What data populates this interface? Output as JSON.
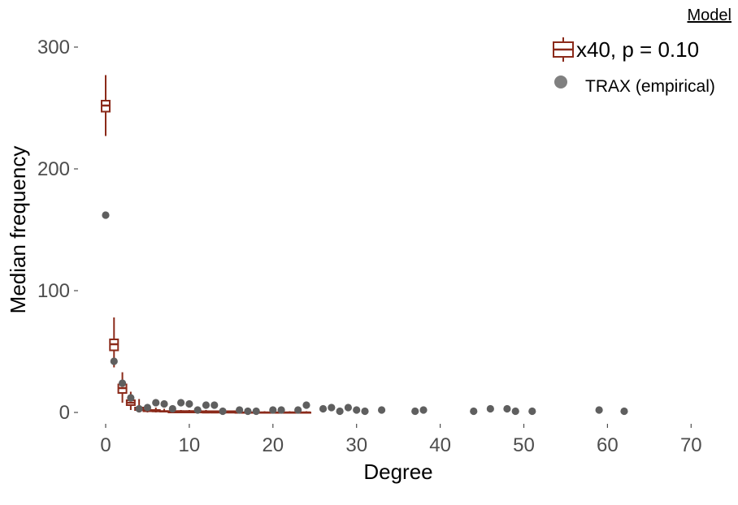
{
  "chart_data": {
    "type": "scatter",
    "xlabel": "Degree",
    "ylabel": "Median frequency",
    "xlim": [
      -2,
      72
    ],
    "ylim": [
      -15,
      318
    ],
    "x_ticks": [
      0,
      10,
      20,
      30,
      40,
      50,
      60,
      70
    ],
    "y_ticks": [
      0,
      100,
      200,
      300
    ],
    "grid": false,
    "legend": {
      "title": "Model",
      "position": "top-right",
      "entries": [
        "x40, p = 0.10",
        "TRAX (empirical)"
      ]
    },
    "series": [
      {
        "name": "x40, p = 0.10",
        "kind": "boxplot",
        "color": "#8b2a1a",
        "boxes": [
          {
            "x": 0,
            "whisker_low": 227,
            "q1": 247,
            "median": 252,
            "q3": 256,
            "whisker_high": 277
          },
          {
            "x": 1,
            "whisker_low": 37,
            "q1": 51,
            "median": 56,
            "q3": 60,
            "whisker_high": 78
          },
          {
            "x": 2,
            "whisker_low": 8,
            "q1": 16,
            "median": 20,
            "q3": 23,
            "whisker_high": 33
          },
          {
            "x": 3,
            "whisker_low": 2,
            "q1": 6,
            "median": 8,
            "q3": 10,
            "whisker_high": 17
          },
          {
            "x": 4,
            "whisker_low": 0,
            "q1": 2,
            "median": 3,
            "q3": 4,
            "whisker_high": 11
          },
          {
            "x": 5,
            "whisker_low": 0,
            "q1": 1,
            "median": 2,
            "q3": 2,
            "whisker_high": 6
          },
          {
            "x": 6,
            "whisker_low": 0,
            "q1": 1,
            "median": 1,
            "q3": 2,
            "whisker_high": 4
          },
          {
            "x": 7,
            "whisker_low": 0,
            "q1": 1,
            "median": 1,
            "q3": 1,
            "whisker_high": 3
          },
          {
            "x": 8,
            "whisker_low": 0,
            "q1": 0,
            "median": 1,
            "q3": 1,
            "whisker_high": 3
          },
          {
            "x": 9,
            "whisker_low": 0,
            "q1": 0,
            "median": 1,
            "q3": 1,
            "whisker_high": 2
          },
          {
            "x": 10,
            "whisker_low": 0,
            "q1": 0,
            "median": 1,
            "q3": 1,
            "whisker_high": 2
          },
          {
            "x": 11,
            "whisker_low": 0,
            "q1": 0,
            "median": 1,
            "q3": 1,
            "whisker_high": 2
          },
          {
            "x": 12,
            "whisker_low": 0,
            "q1": 0,
            "median": 0,
            "q3": 1,
            "whisker_high": 2
          },
          {
            "x": 13,
            "whisker_low": 0,
            "q1": 0,
            "median": 0,
            "q3": 1,
            "whisker_high": 1
          },
          {
            "x": 14,
            "whisker_low": 0,
            "q1": 0,
            "median": 0,
            "q3": 1,
            "whisker_high": 1
          },
          {
            "x": 15,
            "whisker_low": 0,
            "q1": 0,
            "median": 0,
            "q3": 1,
            "whisker_high": 1
          },
          {
            "x": 16,
            "whisker_low": 0,
            "q1": 0,
            "median": 0,
            "q3": 0,
            "whisker_high": 1
          },
          {
            "x": 17,
            "whisker_low": 0,
            "q1": 0,
            "median": 0,
            "q3": 0,
            "whisker_high": 1
          },
          {
            "x": 18,
            "whisker_low": 0,
            "q1": 0,
            "median": 0,
            "q3": 0,
            "whisker_high": 1
          },
          {
            "x": 19,
            "whisker_low": 0,
            "q1": 0,
            "median": 0,
            "q3": 0,
            "whisker_high": 1
          },
          {
            "x": 20,
            "whisker_low": 0,
            "q1": 0,
            "median": 0,
            "q3": 0,
            "whisker_high": 1
          },
          {
            "x": 21,
            "whisker_low": 0,
            "q1": 0,
            "median": 0,
            "q3": 0,
            "whisker_high": 1
          },
          {
            "x": 22,
            "whisker_low": 0,
            "q1": 0,
            "median": 0,
            "q3": 0,
            "whisker_high": 1
          },
          {
            "x": 23,
            "whisker_low": 0,
            "q1": 0,
            "median": 0,
            "q3": 0,
            "whisker_high": 1
          },
          {
            "x": 24,
            "whisker_low": 0,
            "q1": 0,
            "median": 0,
            "q3": 0,
            "whisker_high": 1
          }
        ]
      },
      {
        "name": "TRAX (empirical)",
        "kind": "points",
        "color": "#5f5f5f",
        "x": [
          0,
          1,
          2,
          3,
          4,
          5,
          6,
          7,
          8,
          9,
          10,
          11,
          12,
          13,
          14,
          16,
          17,
          18,
          20,
          21,
          23,
          24,
          26,
          27,
          28,
          29,
          30,
          31,
          33,
          37,
          38,
          44,
          46,
          48,
          49,
          51,
          59,
          62
        ],
        "y": [
          162,
          42,
          24,
          12,
          3,
          4,
          8,
          7,
          3,
          8,
          7,
          2,
          6,
          6,
          1,
          2,
          1,
          1,
          2,
          2,
          2,
          6,
          3,
          4,
          1,
          4,
          2,
          1,
          2,
          1,
          2,
          1,
          3,
          3,
          1,
          1,
          2,
          1
        ]
      }
    ]
  }
}
